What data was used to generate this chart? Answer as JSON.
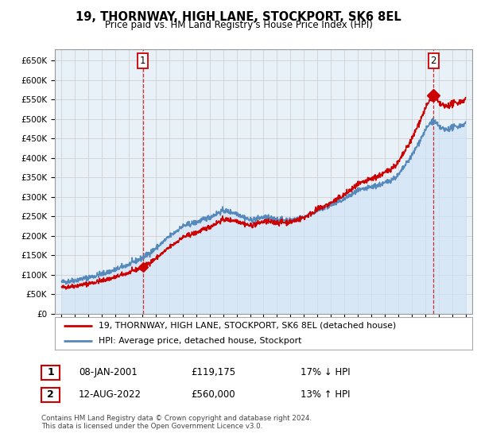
{
  "title": "19, THORNWAY, HIGH LANE, STOCKPORT, SK6 8EL",
  "subtitle": "Price paid vs. HM Land Registry's House Price Index (HPI)",
  "ylabel_ticks": [
    "£0",
    "£50K",
    "£100K",
    "£150K",
    "£200K",
    "£250K",
    "£300K",
    "£350K",
    "£400K",
    "£450K",
    "£500K",
    "£550K",
    "£600K",
    "£650K"
  ],
  "ylim": [
    0,
    680000
  ],
  "xlim_start": 1994.5,
  "xlim_end": 2025.5,
  "legend_line1": "19, THORNWAY, HIGH LANE, STOCKPORT, SK6 8EL (detached house)",
  "legend_line2": "HPI: Average price, detached house, Stockport",
  "annotation1_date": "08-JAN-2001",
  "annotation1_price": "£119,175",
  "annotation1_hpi": "17% ↓ HPI",
  "annotation2_date": "12-AUG-2022",
  "annotation2_price": "£560,000",
  "annotation2_hpi": "13% ↑ HPI",
  "footnote": "Contains HM Land Registry data © Crown copyright and database right 2024.\nThis data is licensed under the Open Government Licence v3.0.",
  "sale1_x": 2001.03,
  "sale1_y": 119175,
  "sale2_x": 2022.62,
  "sale2_y": 560000,
  "hpi_color": "#5588bb",
  "hpi_fill_color": "#d0e4f5",
  "price_color": "#cc0000",
  "grid_color": "#cccccc",
  "background_color": "#ffffff",
  "chart_bg_color": "#e8f0f8"
}
